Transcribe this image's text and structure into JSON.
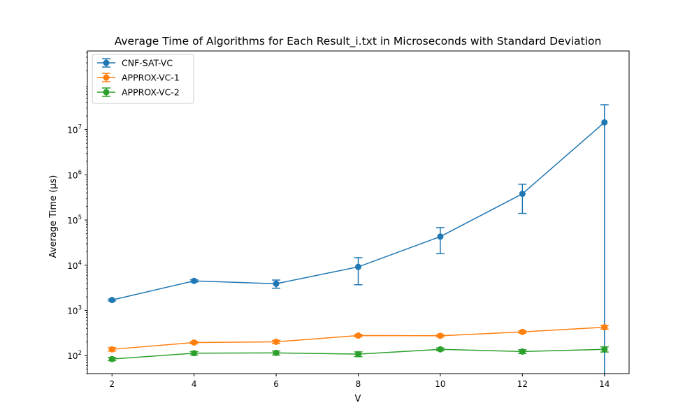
{
  "chart_data": {
    "type": "line",
    "title": "Average Time of Algorithms for Each Result_i.txt in Microseconds with Standard Deviation",
    "xlabel": "V",
    "ylabel": "Average Time (μs)",
    "y_scale": "log",
    "x": [
      2,
      4,
      6,
      8,
      10,
      12,
      14
    ],
    "xlim": [
      1.4,
      14.6
    ],
    "ylim": [
      40,
      550000000
    ],
    "x_ticks": [
      2,
      4,
      6,
      8,
      10,
      12,
      14
    ],
    "y_ticks": [
      {
        "value": 100,
        "label_base": "10",
        "label_exp": "2"
      },
      {
        "value": 1000,
        "label_base": "10",
        "label_exp": "3"
      },
      {
        "value": 10000,
        "label_base": "10",
        "label_exp": "4"
      },
      {
        "value": 100000,
        "label_base": "10",
        "label_exp": "5"
      },
      {
        "value": 1000000,
        "label_base": "10",
        "label_exp": "6"
      },
      {
        "value": 10000000,
        "label_base": "10",
        "label_exp": "7"
      }
    ],
    "grid": false,
    "legend_position": "top-left",
    "series": [
      {
        "name": "CNF-SAT-VC",
        "color": "#1f77b4",
        "values": [
          1700,
          4500,
          3900,
          9200,
          43000,
          380000,
          14500000
        ],
        "error": [
          80,
          250,
          800,
          5500,
          25000,
          240000,
          21000000
        ]
      },
      {
        "name": "APPROX-VC-1",
        "color": "#ff7f0e",
        "values": [
          138,
          195,
          202,
          278,
          275,
          335,
          425
        ],
        "error": [
          12,
          12,
          15,
          18,
          15,
          20,
          40
        ]
      },
      {
        "name": "APPROX-VC-2",
        "color": "#2ca02c",
        "values": [
          84,
          113,
          115,
          108,
          138,
          123,
          138
        ],
        "error": [
          7,
          10,
          12,
          13,
          10,
          12,
          18
        ]
      }
    ]
  }
}
